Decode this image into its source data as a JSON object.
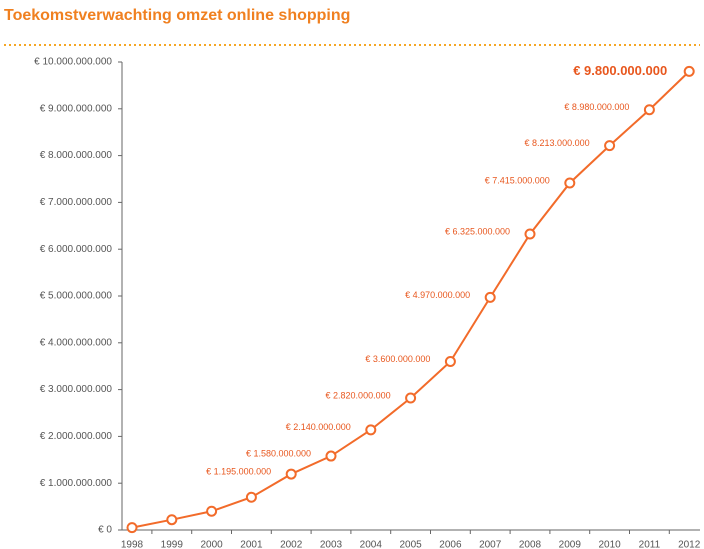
{
  "chart_data": {
    "type": "line",
    "title": "Toekomstverwachting omzet online shopping",
    "categories": [
      "1998",
      "1999",
      "2000",
      "2001",
      "2002",
      "2003",
      "2004",
      "2005",
      "2006",
      "2007",
      "2008",
      "2009",
      "2010",
      "2011",
      "2012"
    ],
    "series": [
      {
        "color": "#f26b2a",
        "values": [
          50000000,
          220000000,
          400000000,
          700000000,
          1195000000,
          1580000000,
          2140000000,
          2820000000,
          3600000000,
          4970000000,
          6325000000,
          7415000000,
          8213000000,
          8980000000,
          9800000000
        ],
        "value_labels": [
          null,
          null,
          null,
          null,
          "€ 1.195.000.000",
          "€ 1.580.000.000",
          "€ 2.140.000.000",
          "€ 2.820.000.000",
          "€ 3.600.000.000",
          "€ 4.970.000.000",
          "€ 6.325.000.000",
          "€ 7.415.000.000",
          "€ 8.213.000.000",
          "€ 8.980.000.000",
          "€ 9.800.000.000"
        ]
      }
    ],
    "ylim": [
      0,
      10000000000
    ],
    "yticks": [
      {
        "value": 0,
        "label": "€ 0"
      },
      {
        "value": 1000000000,
        "label": "€ 1.000.000.000"
      },
      {
        "value": 2000000000,
        "label": "€ 2.000.000.000"
      },
      {
        "value": 3000000000,
        "label": "€ 3.000.000.000"
      },
      {
        "value": 4000000000,
        "label": "€ 4.000.000.000"
      },
      {
        "value": 5000000000,
        "label": "€ 5.000.000.000"
      },
      {
        "value": 6000000000,
        "label": "€ 6.000.000.000"
      },
      {
        "value": 7000000000,
        "label": "€ 7.000.000.000"
      },
      {
        "value": 8000000000,
        "label": "€ 8.000.000.000"
      },
      {
        "value": 9000000000,
        "label": "€ 9.000.000.000"
      },
      {
        "value": 10000000000,
        "label": "€ 10.000.000.000"
      }
    ],
    "grid": false
  }
}
